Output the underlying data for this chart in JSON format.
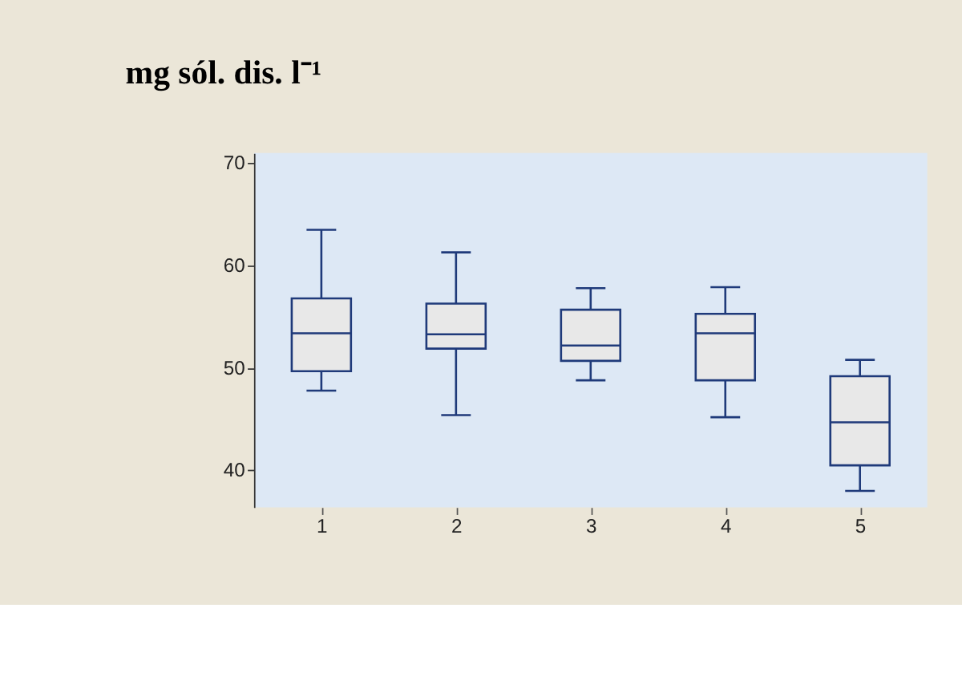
{
  "chart_data": {
    "type": "box",
    "title": "mg sól. dis. l⁻¹",
    "categories": [
      "1",
      "2",
      "3",
      "4",
      "5"
    ],
    "boxes": [
      {
        "low": 47.8,
        "q1": 49.7,
        "median": 53.4,
        "q3": 56.8,
        "high": 63.5
      },
      {
        "low": 45.4,
        "q1": 51.9,
        "median": 53.3,
        "q3": 56.3,
        "high": 61.3
      },
      {
        "low": 48.8,
        "q1": 50.7,
        "median": 52.2,
        "q3": 55.7,
        "high": 57.8
      },
      {
        "low": 45.2,
        "q1": 48.8,
        "median": 53.4,
        "q3": 55.3,
        "high": 57.9
      },
      {
        "low": 38.0,
        "q1": 40.5,
        "median": 44.7,
        "q3": 49.2,
        "high": 50.8
      }
    ],
    "color": "#1f3a7a",
    "ylim": [
      36.4,
      71
    ],
    "yticks": [
      40,
      50,
      60,
      70
    ],
    "grid": false
  }
}
